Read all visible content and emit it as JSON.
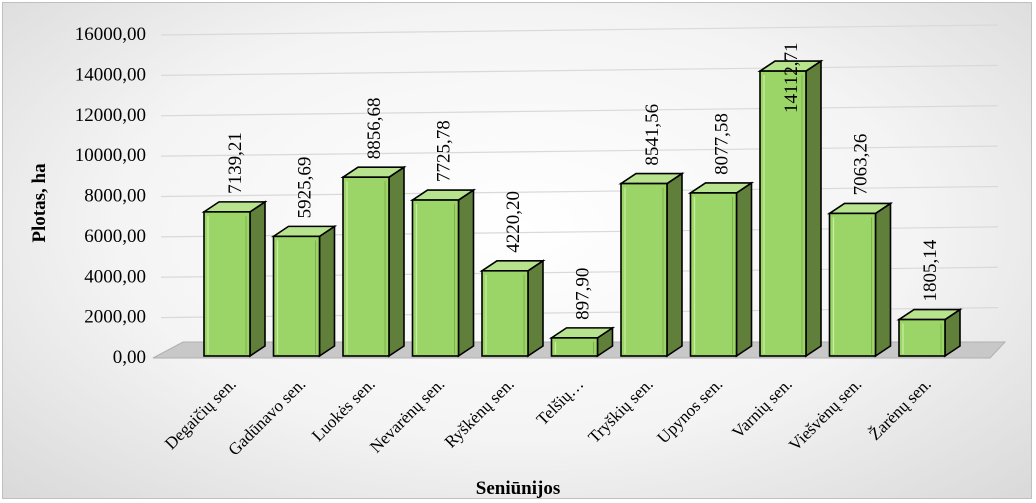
{
  "chart_data": {
    "type": "bar",
    "style": "3d-column",
    "categories": [
      "Degaičių sen.",
      "Gadūnavo sen.",
      "Luokės sen.",
      "Nevarėnų sen.",
      "Ryškėnų sen.",
      "Telšių…",
      "Tryškių sen.",
      "Upynos sen.",
      "Varnių sen.",
      "Viešvėnų sen.",
      "Žarėnų sen."
    ],
    "values": [
      7139.21,
      5925.69,
      8856.68,
      7725.78,
      4220.2,
      897.9,
      8541.56,
      8077.58,
      14112.71,
      7063.26,
      1805.14
    ],
    "value_labels": [
      "7139,21",
      "5925,69",
      "8856,68",
      "7725,78",
      "4220,20",
      "897,90",
      "8541,56",
      "8077,58",
      "14112,71",
      "7063,26",
      "1805,14"
    ],
    "xlabel": "Seniūnijos",
    "ylabel": "Plotas, ha",
    "ylim": [
      0,
      16000
    ],
    "yticks": [
      0,
      2000,
      4000,
      6000,
      8000,
      10000,
      12000,
      14000,
      16000
    ],
    "ytick_labels": [
      "0,00",
      "2000,00",
      "4000,00",
      "6000,00",
      "8000,00",
      "10000,00",
      "12000,00",
      "14000,00",
      "16000,00"
    ],
    "grid": true,
    "legend": "none",
    "colors": {
      "bar_front": "#9cd567",
      "bar_side": "#5f7f3a",
      "bar_top": "#b7e38f",
      "bar_edge": "#000000",
      "floor": "#c8c8c8",
      "gridline": "#d9d9d9"
    }
  }
}
